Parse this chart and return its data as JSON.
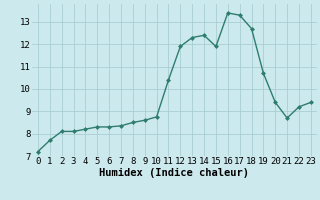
{
  "x": [
    0,
    1,
    2,
    3,
    4,
    5,
    6,
    7,
    8,
    9,
    10,
    11,
    12,
    13,
    14,
    15,
    16,
    17,
    18,
    19,
    20,
    21,
    22,
    23
  ],
  "y": [
    7.2,
    7.7,
    8.1,
    8.1,
    8.2,
    8.3,
    8.3,
    8.35,
    8.5,
    8.6,
    8.75,
    10.4,
    11.9,
    12.3,
    12.4,
    11.9,
    13.4,
    13.3,
    12.7,
    10.7,
    9.4,
    8.7,
    9.2,
    9.4
  ],
  "line_color": "#2e7d6e",
  "marker": "D",
  "marker_size": 2.0,
  "bg_color": "#cce9ed",
  "grid_color": "#aacdd4",
  "xlabel": "Humidex (Indice chaleur)",
  "xlim": [
    -0.5,
    23.5
  ],
  "ylim": [
    7,
    13.8
  ],
  "yticks": [
    7,
    8,
    9,
    10,
    11,
    12,
    13
  ],
  "xticks": [
    0,
    1,
    2,
    3,
    4,
    5,
    6,
    7,
    8,
    9,
    10,
    11,
    12,
    13,
    14,
    15,
    16,
    17,
    18,
    19,
    20,
    21,
    22,
    23
  ],
  "xlabel_fontsize": 7.5,
  "tick_fontsize": 6.5,
  "line_width": 1.0
}
